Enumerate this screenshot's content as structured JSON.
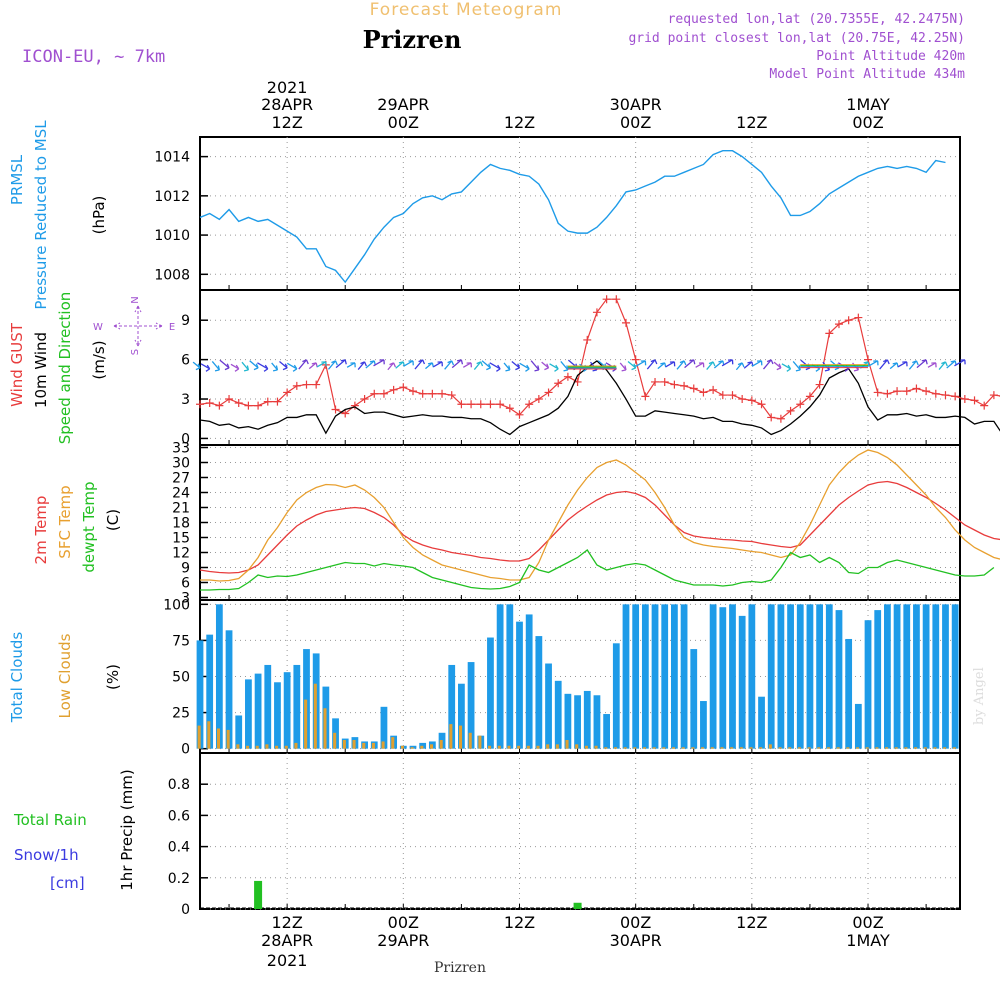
{
  "header": {
    "chart_type_title": "Forecast Meteogram",
    "location_title": "Prizren",
    "model_label": "ICON-EU, ~ 7km",
    "requested_point": "requested lon,lat (20.7355E, 42.2475N)",
    "grid_point": "grid point closest lon,lat (20.75E, 42.25N)",
    "point_altitude": "Point Altitude 420m",
    "model_point_altitude": "Model Point Altitude 434m",
    "credit": "by Angel",
    "footer_location": "Prizren"
  },
  "time_axis": {
    "top_labels": [
      {
        "line1": "2021",
        "line2": "28APR",
        "line3": "12Z"
      },
      {
        "line1": "",
        "line2": "29APR",
        "line3": "00Z"
      },
      {
        "line1": "",
        "line2": "",
        "line3": "12Z"
      },
      {
        "line1": "",
        "line2": "30APR",
        "line3": "00Z"
      },
      {
        "line1": "",
        "line2": "",
        "line3": "12Z"
      },
      {
        "line1": "",
        "line2": "1MAY",
        "line3": "00Z"
      }
    ],
    "bottom_labels": [
      {
        "line1": "12Z",
        "line2": "28APR",
        "line3": "2021"
      },
      {
        "line1": "00Z",
        "line2": "29APR",
        "line3": ""
      },
      {
        "line1": "12Z",
        "line2": "",
        "line3": ""
      },
      {
        "line1": "00Z",
        "line2": "30APR",
        "line3": ""
      },
      {
        "line1": "12Z",
        "line2": "",
        "line3": ""
      },
      {
        "line1": "00Z",
        "line2": "1MAY",
        "line3": ""
      }
    ]
  },
  "colors": {
    "pressure": "#1e9be8",
    "gust": "#e83c3c",
    "wind": "#000000",
    "green": "#22c022",
    "sfc": "#e8a030",
    "clouds_total": "#1e9be8",
    "clouds_low": "#e0a030",
    "purple": "#a050d0",
    "snow": "#3a3ae0",
    "title_orange": "#f0c070"
  },
  "chart_data": [
    {
      "type": "line",
      "panel": "pressure",
      "ylabel_lines": [
        "PRMSL",
        "Pressure Reduced to MSL"
      ],
      "unit": "(hPa)",
      "ylim": [
        1007.2,
        1015.0
      ],
      "yticks": [
        1008,
        1010,
        1012,
        1014
      ],
      "x_hours_start": 3,
      "x_hours_step": 1,
      "series": [
        {
          "name": "PRMSL",
          "values": [
            1010.9,
            1011.1,
            1010.8,
            1011.3,
            1010.7,
            1010.9,
            1010.7,
            1010.8,
            1010.5,
            1010.2,
            1009.9,
            1009.3,
            1009.3,
            1008.4,
            1008.2,
            1007.6,
            1008.3,
            1009.0,
            1009.8,
            1010.4,
            1010.9,
            1011.1,
            1011.6,
            1011.9,
            1012.0,
            1011.8,
            1012.1,
            1012.2,
            1012.7,
            1013.2,
            1013.6,
            1013.4,
            1013.3,
            1013.1,
            1013.0,
            1012.6,
            1011.8,
            1010.6,
            1010.2,
            1010.1,
            1010.1,
            1010.4,
            1010.9,
            1011.5,
            1012.2,
            1012.3,
            1012.5,
            1012.7,
            1013.0,
            1013.0,
            1013.2,
            1013.4,
            1013.6,
            1014.1,
            1014.3,
            1014.3,
            1014.0,
            1013.6,
            1013.2,
            1012.5,
            1011.9,
            1011.0,
            1011.0,
            1011.2,
            1011.6,
            1012.1,
            1012.4,
            1012.7,
            1013.0,
            1013.2,
            1013.4,
            1013.5,
            1013.4,
            1013.5,
            1013.4,
            1013.2,
            1013.8,
            1013.7
          ]
        }
      ]
    },
    {
      "type": "line",
      "panel": "wind",
      "ylabel_lines": [
        "Wind GUST",
        "10m Wind",
        "Speed and Direction"
      ],
      "unit": "(m/s)",
      "compass": {
        "n": "N",
        "s": "S",
        "w": "W",
        "e": "E"
      },
      "ylim": [
        -0.5,
        11.3
      ],
      "yticks": [
        0,
        3,
        6,
        9
      ],
      "x_hours_start": 3,
      "x_hours_step": 1,
      "series": [
        {
          "name": "Wind GUST",
          "values": [
            2.6,
            2.7,
            2.5,
            3.0,
            2.7,
            2.5,
            2.5,
            2.8,
            2.8,
            3.5,
            4.0,
            4.1,
            4.1,
            5.6,
            2.2,
            1.9,
            2.5,
            3.0,
            3.4,
            3.4,
            3.7,
            3.9,
            3.6,
            3.4,
            3.4,
            3.4,
            3.3,
            2.6,
            2.6,
            2.6,
            2.6,
            2.6,
            2.3,
            1.8,
            2.6,
            3.0,
            3.5,
            4.2,
            4.7,
            4.3,
            7.5,
            9.6,
            10.6,
            10.6,
            8.8,
            6.0,
            3.2,
            4.3,
            4.3,
            4.1,
            4.0,
            3.8,
            3.5,
            3.7,
            3.3,
            3.3,
            3.0,
            2.9,
            2.6,
            1.6,
            1.5,
            2.1,
            2.6,
            3.2,
            4.1,
            8.0,
            8.7,
            9.0,
            9.2,
            6.0,
            3.5,
            3.4,
            3.6,
            3.6,
            3.8,
            3.6,
            3.4,
            3.3,
            3.2,
            3.0,
            2.9,
            2.5,
            3.3,
            3.2
          ]
        },
        {
          "name": "10m Wind",
          "values": [
            1.4,
            1.3,
            1.0,
            1.1,
            0.8,
            0.9,
            0.7,
            1.0,
            1.2,
            1.6,
            1.6,
            1.8,
            1.8,
            0.4,
            1.7,
            2.2,
            2.4,
            1.9,
            2.0,
            2.0,
            1.8,
            1.6,
            1.7,
            1.8,
            1.7,
            1.7,
            1.6,
            1.6,
            1.5,
            1.5,
            1.2,
            0.7,
            0.3,
            0.9,
            1.2,
            1.5,
            1.8,
            2.3,
            3.2,
            4.8,
            5.4,
            5.9,
            5.2,
            4.2,
            3.0,
            1.7,
            1.7,
            2.1,
            2.0,
            1.9,
            1.8,
            1.7,
            1.5,
            1.6,
            1.3,
            1.3,
            1.1,
            1.0,
            0.8,
            0.3,
            0.6,
            1.1,
            1.7,
            2.4,
            3.3,
            4.6,
            5.0,
            5.3,
            4.2,
            2.4,
            1.4,
            1.8,
            1.8,
            1.9,
            1.7,
            1.8,
            1.6,
            1.6,
            1.7,
            1.6,
            1.1,
            1.3,
            1.3,
            0.2
          ]
        }
      ],
      "direction_arrows": {
        "y_value": 5.6,
        "entries": [
          {
            "color": "#1e9be8",
            "angle": 200
          },
          {
            "color": "#3a3ae0",
            "angle": 210
          },
          {
            "color": "#1e9be8",
            "angle": 205
          },
          {
            "color": "#3a3ae0",
            "angle": 215
          },
          {
            "color": "#6a3ad0",
            "angle": 225
          },
          {
            "color": "#1e9be8",
            "angle": 210
          },
          {
            "color": "#a050d0",
            "angle": 230
          },
          {
            "color": "#1e9be8",
            "angle": 220
          }
        ]
      }
    },
    {
      "type": "line",
      "panel": "temperature",
      "ylabel_lines": [
        "2m Temp",
        "SFC Temp",
        "dewpt Temp"
      ],
      "unit": "(C)",
      "ylim": [
        2.5,
        33.5
      ],
      "yticks": [
        3,
        6,
        9,
        12,
        15,
        18,
        21,
        24,
        27,
        30,
        33
      ],
      "x_hours_start": 3,
      "x_hours_step": 1,
      "series": [
        {
          "name": "2m Temp",
          "values": [
            8.5,
            8.2,
            8.0,
            7.9,
            8.0,
            8.5,
            9.5,
            11.5,
            13.5,
            15.5,
            17.3,
            18.5,
            19.5,
            20.2,
            20.5,
            20.8,
            21.0,
            20.8,
            20.0,
            19.0,
            17.5,
            15.5,
            14.3,
            13.5,
            12.9,
            12.5,
            12.0,
            11.7,
            11.4,
            11.0,
            10.8,
            10.5,
            10.3,
            10.3,
            10.8,
            12.5,
            14.5,
            16.5,
            18.5,
            20.0,
            21.3,
            22.5,
            23.5,
            24.0,
            24.2,
            23.8,
            23.0,
            21.5,
            19.5,
            17.5,
            16.0,
            15.3,
            15.0,
            14.8,
            14.6,
            14.5,
            14.3,
            14.2,
            13.8,
            13.5,
            13.2,
            13.0,
            13.5,
            15.5,
            17.5,
            19.5,
            21.5,
            23.0,
            24.3,
            25.5,
            26.0,
            26.2,
            25.8,
            25.0,
            24.0,
            23.0,
            21.8,
            20.5,
            19.0,
            17.5,
            16.5,
            15.5,
            14.8,
            14.5
          ]
        },
        {
          "name": "SFC Temp",
          "values": [
            6.5,
            6.5,
            6.3,
            6.4,
            6.8,
            8.5,
            11.0,
            14.5,
            17.0,
            20.0,
            22.5,
            24.0,
            25.0,
            25.6,
            25.5,
            25.0,
            25.5,
            24.5,
            23.0,
            21.0,
            18.0,
            15.0,
            13.0,
            11.5,
            10.5,
            9.5,
            9.0,
            8.5,
            8.0,
            7.5,
            7.0,
            6.8,
            6.5,
            6.5,
            7.0,
            10.0,
            14.5,
            18.0,
            21.5,
            24.5,
            27.0,
            29.0,
            30.0,
            30.5,
            29.5,
            28.0,
            26.5,
            24.0,
            21.0,
            17.5,
            15.0,
            14.0,
            13.5,
            13.2,
            13.0,
            12.8,
            12.5,
            12.2,
            12.0,
            11.5,
            11.0,
            11.5,
            14.0,
            17.5,
            21.5,
            25.5,
            28.0,
            30.0,
            31.5,
            32.5,
            32.0,
            31.0,
            29.5,
            27.5,
            25.5,
            23.5,
            21.0,
            19.0,
            16.5,
            14.5,
            13.0,
            12.0,
            11.0,
            10.5,
            12.5
          ]
        },
        {
          "name": "dewpt Temp",
          "values": [
            4.5,
            4.5,
            4.6,
            4.6,
            4.8,
            6.0,
            7.5,
            7.0,
            7.3,
            7.2,
            7.5,
            8.0,
            8.5,
            9.0,
            9.5,
            10.0,
            9.8,
            9.8,
            9.3,
            9.8,
            9.5,
            9.3,
            9.0,
            8.0,
            7.0,
            6.5,
            6.0,
            5.5,
            5.0,
            4.8,
            4.7,
            4.8,
            5.2,
            6.0,
            9.5,
            8.5,
            8.0,
            9.0,
            10.0,
            11.0,
            12.5,
            9.5,
            8.5,
            9.0,
            9.5,
            9.8,
            9.5,
            8.5,
            7.5,
            6.5,
            6.0,
            5.5,
            5.5,
            5.5,
            5.3,
            5.5,
            6.0,
            6.2,
            6.0,
            6.5,
            9.0,
            12.0,
            11.0,
            11.5,
            10.0,
            11.0,
            10.0,
            8.0,
            7.8,
            9.0,
            9.0,
            10.0,
            10.5,
            10.0,
            9.5,
            9.0,
            8.5,
            8.0,
            7.5,
            7.3,
            7.3,
            7.5,
            9.0
          ]
        }
      ]
    },
    {
      "type": "bar",
      "panel": "clouds",
      "ylabel_lines": [
        "Total Clouds",
        "Low Clouds"
      ],
      "unit": "(%)",
      "ylim": [
        -3,
        103
      ],
      "yticks": [
        0,
        25,
        50,
        75,
        100
      ],
      "x_hours_start": 3,
      "x_hours_step": 1,
      "series": [
        {
          "name": "Total Clouds",
          "values": [
            75,
            79,
            100,
            82,
            23,
            48,
            52,
            58,
            46,
            53,
            58,
            69,
            66,
            43,
            21,
            7,
            8,
            5,
            5,
            29,
            9,
            2,
            2,
            4,
            5,
            11,
            58,
            45,
            60,
            9,
            77,
            100,
            100,
            88,
            93,
            78,
            59,
            47,
            38,
            37,
            40,
            37,
            24,
            73,
            100,
            100,
            100,
            100,
            100,
            100,
            100,
            69,
            33,
            100,
            98,
            100,
            92,
            100,
            36,
            100,
            100,
            100,
            100,
            100,
            100,
            100,
            96,
            76,
            31,
            89,
            96,
            100,
            100,
            100,
            100,
            100,
            100,
            100,
            100
          ]
        },
        {
          "name": "Low Clouds",
          "values": [
            16,
            19,
            14,
            13,
            3,
            2,
            2,
            3,
            2,
            2,
            4,
            34,
            45,
            28,
            11,
            6,
            6,
            4,
            4,
            5,
            8,
            2,
            1,
            2,
            3,
            6,
            17,
            16,
            11,
            9,
            2,
            2,
            2,
            2,
            2,
            2,
            3,
            3,
            6,
            3,
            2,
            2,
            1,
            1,
            1,
            1,
            1,
            1,
            1,
            1,
            1,
            1,
            1,
            1,
            1,
            1,
            1,
            1,
            1,
            3,
            1,
            1,
            1,
            1,
            1,
            1,
            1,
            1,
            1,
            1,
            1,
            1,
            1,
            1,
            1,
            1,
            1,
            1,
            1
          ]
        }
      ]
    },
    {
      "type": "bar",
      "panel": "precip",
      "ylabel_lines": [
        "Total Rain",
        "Snow/1h",
        "[cm]"
      ],
      "unit": "1hr Precip (mm)",
      "ylim": [
        0,
        1.0
      ],
      "yticks": [
        0,
        0.2,
        0.4,
        0.6,
        0.8
      ],
      "x_hours_start": 3,
      "x_hours_step": 1,
      "series": [
        {
          "name": "Total Rain",
          "points": [
            {
              "hour": 9,
              "value": 0.18
            },
            {
              "hour": 42,
              "value": 0.04
            }
          ]
        },
        {
          "name": "Snow/1h",
          "points": []
        }
      ]
    }
  ]
}
